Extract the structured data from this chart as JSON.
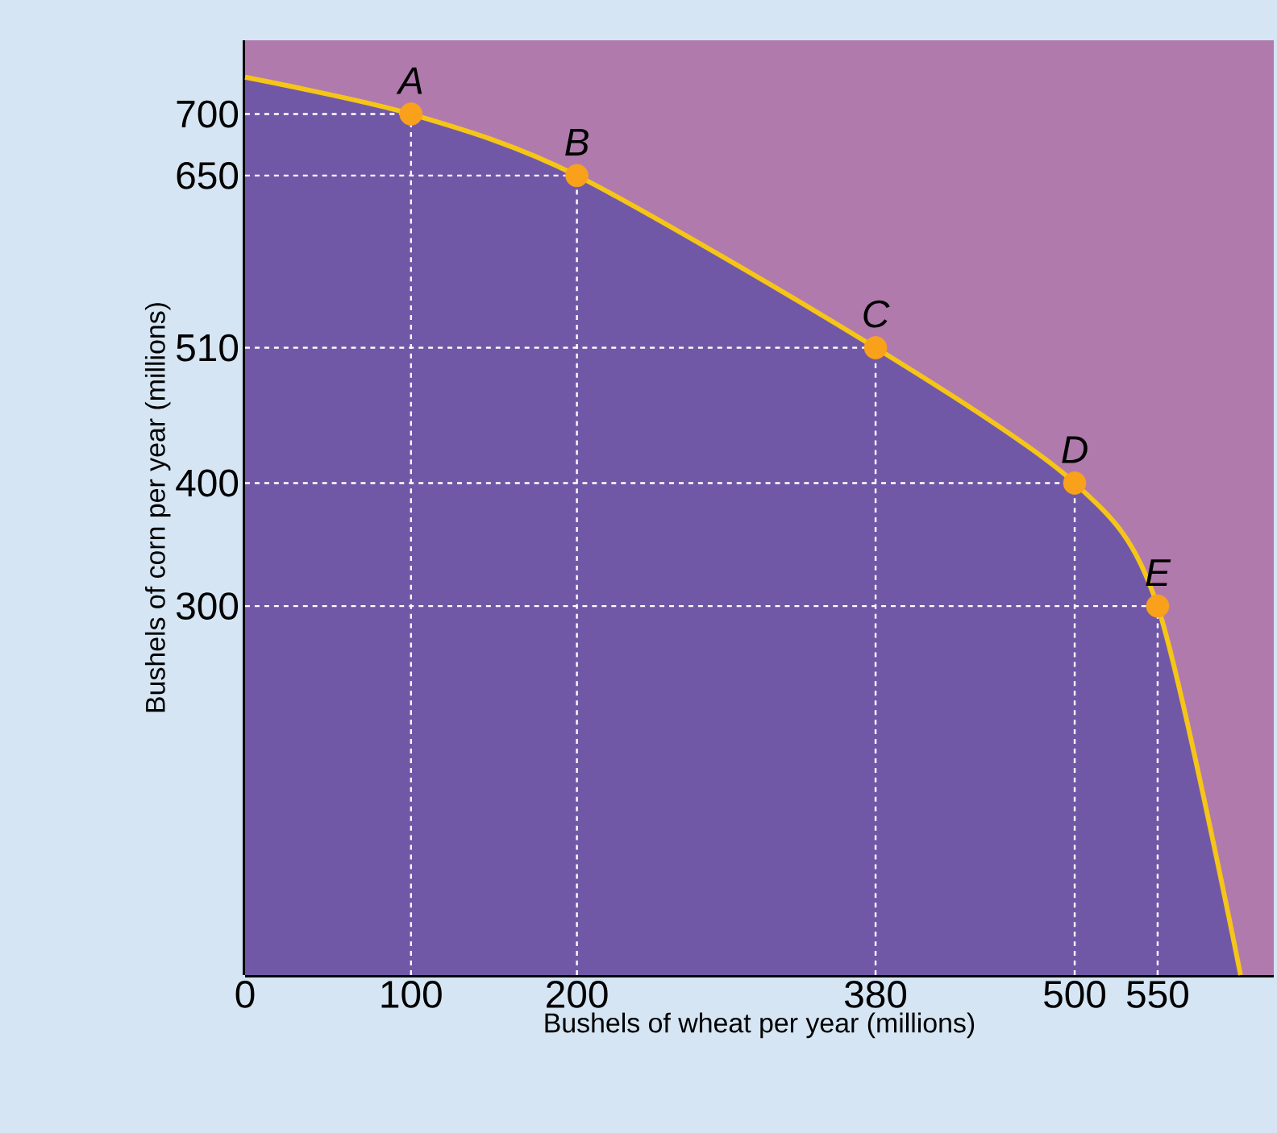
{
  "chart_data": {
    "type": "area",
    "xlabel": "Bushels of wheat per year (millions)",
    "ylabel": "Bushels of corn per year (millions)",
    "series": [
      {
        "color": "#7158a6",
        "marker": "none",
        "line_style": "solid",
        "x": [
          0,
          100,
          200,
          380,
          500,
          550,
          600
        ],
        "values": [
          730,
          700,
          650,
          510,
          400,
          300,
          0
        ]
      },
      {
        "type": "scatter",
        "color": "#f9a11b",
        "marker": "circle",
        "x": [
          100,
          200,
          380,
          500,
          550
        ],
        "values": [
          700,
          650,
          510,
          400,
          300
        ]
      }
    ],
    "annotations": [
      {
        "text": "A",
        "x": 100,
        "y": 700
      },
      {
        "text": "B",
        "x": 200,
        "y": 650
      },
      {
        "text": "C",
        "x": 380,
        "y": 510
      },
      {
        "text": "D",
        "x": 500,
        "y": 400
      },
      {
        "text": "E",
        "x": 550,
        "y": 300
      }
    ],
    "ref_lines": [
      {
        "axis": "x",
        "value": 100,
        "color": "#ffffff",
        "line_style": "dashed"
      },
      {
        "axis": "x",
        "value": 200,
        "color": "#ffffff",
        "line_style": "dashed"
      },
      {
        "axis": "x",
        "value": 380,
        "color": "#ffffff",
        "line_style": "dashed"
      },
      {
        "axis": "x",
        "value": 500,
        "color": "#ffffff",
        "line_style": "dashed"
      },
      {
        "axis": "x",
        "value": 550,
        "color": "#ffffff",
        "line_style": "dashed"
      },
      {
        "axis": "y",
        "value": 700,
        "color": "#ffffff",
        "line_style": "dashed"
      },
      {
        "axis": "y",
        "value": 650,
        "color": "#ffffff",
        "line_style": "dashed"
      },
      {
        "axis": "y",
        "value": 510,
        "color": "#ffffff",
        "line_style": "dashed"
      },
      {
        "axis": "y",
        "value": 400,
        "color": "#ffffff",
        "line_style": "dashed"
      },
      {
        "axis": "y",
        "value": 300,
        "color": "#ffffff",
        "line_style": "dashed"
      }
    ],
    "bands": [
      {
        "axis": "y",
        "from": 0,
        "to": 760,
        "color": "#b07aad"
      }
    ],
    "xlim": [
      0,
      620
    ],
    "ylim": [
      0,
      760
    ],
    "xticks": [
      0,
      100,
      200,
      380,
      500,
      550
    ],
    "yticks": [
      300,
      400,
      510,
      650,
      700
    ]
  }
}
